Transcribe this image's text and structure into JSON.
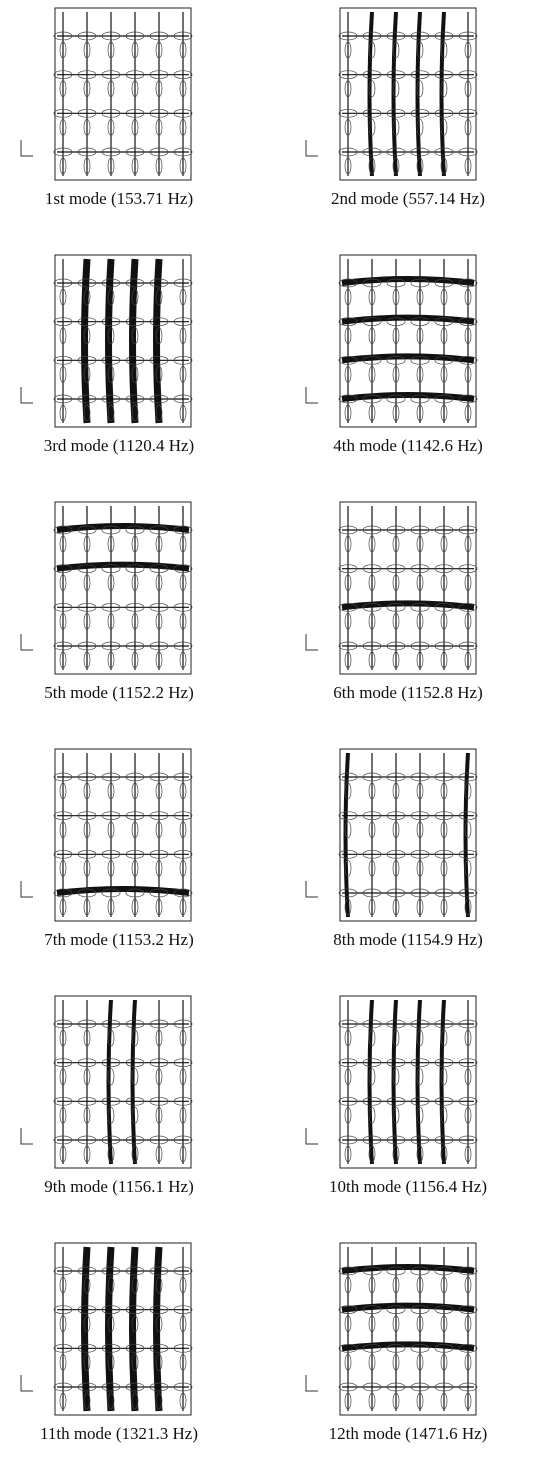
{
  "panels": [
    {
      "caption": "1st mode (153.71 Hz)"
    },
    {
      "caption": "2nd mode (557.14 Hz)"
    },
    {
      "caption": "3rd mode (1120.4 Hz)"
    },
    {
      "caption": "4th mode (1142.6 Hz)"
    },
    {
      "caption": "5th mode (1152.2 Hz)"
    },
    {
      "caption": "6th mode (1152.8 Hz)"
    },
    {
      "caption": "7th mode (1153.2 Hz)"
    },
    {
      "caption": "8th mode (1154.9 Hz)"
    },
    {
      "caption": "9th mode (1156.1 Hz)"
    },
    {
      "caption": "10th mode (1156.4 Hz)"
    },
    {
      "caption": "11th mode (1321.3 Hz)"
    },
    {
      "caption": "12th mode (1471.6 Hz)"
    }
  ]
}
